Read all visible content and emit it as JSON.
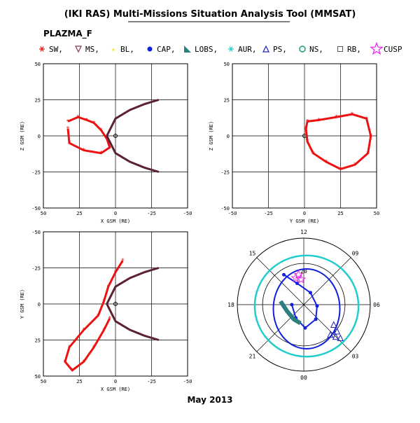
{
  "title": "(IKI RAS) Multi-Missions Situation Analysis Tool (MMSAT)",
  "instrument": "PLAZMA_F",
  "date_label": "May 2013",
  "colors": {
    "orbit": "#ee1111",
    "boundary": "#5a2233",
    "cap": "#1020dd",
    "lobs": "#2a7f7f",
    "aur": "#22cccc",
    "cusp": "#ee22ee",
    "bl": "#eeee22",
    "ps": "#2222bb",
    "ns": "#119966",
    "ms": "#883355",
    "rb": "#555555",
    "polar_outer_ring": "#22cccc",
    "polar_inner_ring": "#1020dd"
  },
  "legend": [
    {
      "label": "SW,",
      "icon": "asterisk-icon",
      "color": "#ee1111"
    },
    {
      "label": "MS,",
      "icon": "down-triangle-icon",
      "color": "#883355"
    },
    {
      "label": "BL,",
      "icon": "star-icon",
      "color": "#eeee22"
    },
    {
      "label": "CAP,",
      "icon": "filled-circle-icon",
      "color": "#1020dd"
    },
    {
      "label": "LOBS,",
      "icon": "filled-triangle-icon",
      "color": "#2a7f7f"
    },
    {
      "label": "AUR,",
      "icon": "asterisk-icon",
      "color": "#22cccc"
    },
    {
      "label": "PS,",
      "icon": "up-triangle-icon",
      "color": "#2222bb"
    },
    {
      "label": "NS,",
      "icon": "open-circle-icon",
      "color": "#119966"
    },
    {
      "label": "RB,",
      "icon": "open-square-icon",
      "color": "#555555"
    },
    {
      "label": "CUSP",
      "icon": "large-star-icon",
      "color": "#ee22ee"
    }
  ],
  "chart_data": [
    {
      "type": "scatter",
      "panel": "top-left",
      "xlabel": "X GSM (RE)",
      "ylabel": "Z GSM (RE)",
      "xlim": [
        50,
        -50
      ],
      "ylim": [
        -50,
        50
      ],
      "x_ticks": [
        50,
        25,
        0,
        -25,
        -50
      ],
      "y_ticks": [
        50,
        25,
        0,
        -25,
        -50
      ],
      "grid": true,
      "series": [
        {
          "role": "orbit",
          "points": [
            [
              33,
              10
            ],
            [
              26,
              13
            ],
            [
              20,
              11
            ],
            [
              15,
              9
            ],
            [
              10,
              4
            ],
            [
              6,
              -2
            ],
            [
              4,
              -8
            ],
            [
              10,
              -12
            ],
            [
              22,
              -10
            ],
            [
              32,
              -5
            ],
            [
              33,
              5
            ]
          ]
        },
        {
          "role": "boundary",
          "points": [
            [
              -30,
              25
            ],
            [
              -20,
              22
            ],
            [
              -10,
              18
            ],
            [
              0,
              12
            ],
            [
              6,
              0
            ],
            [
              0,
              -12
            ],
            [
              -10,
              -18
            ],
            [
              -20,
              -22
            ],
            [
              -30,
              -25
            ]
          ]
        }
      ]
    },
    {
      "type": "scatter",
      "panel": "top-right",
      "xlabel": "Y GSM (RE)",
      "ylabel": "Z GSM (RE)",
      "xlim": [
        -50,
        50
      ],
      "ylim": [
        -50,
        50
      ],
      "x_ticks": [
        -50,
        -25,
        0,
        25,
        50
      ],
      "y_ticks": [
        50,
        25,
        0,
        -25,
        -50
      ],
      "grid": true,
      "series": [
        {
          "role": "orbit",
          "points": [
            [
              2,
              10
            ],
            [
              10,
              11
            ],
            [
              22,
              13
            ],
            [
              33,
              15
            ],
            [
              43,
              12
            ],
            [
              46,
              0
            ],
            [
              44,
              -12
            ],
            [
              35,
              -20
            ],
            [
              25,
              -23
            ],
            [
              15,
              -18
            ],
            [
              6,
              -12
            ],
            [
              2,
              -4
            ],
            [
              1,
              5
            ],
            [
              2,
              10
            ]
          ]
        }
      ]
    },
    {
      "type": "scatter",
      "panel": "bottom-left",
      "xlabel": "X GSM (RE)",
      "ylabel": "Y GSM (RE)",
      "xlim": [
        50,
        -50
      ],
      "ylim": [
        -50,
        50
      ],
      "x_ticks": [
        50,
        25,
        0,
        -25,
        -50
      ],
      "y_ticks": [
        -50,
        -25,
        0,
        25,
        50
      ],
      "grid": true,
      "series": [
        {
          "role": "orbit",
          "points": [
            [
              -5,
              -30
            ],
            [
              0,
              -22
            ],
            [
              5,
              -12
            ],
            [
              8,
              -2
            ],
            [
              12,
              8
            ],
            [
              22,
              18
            ],
            [
              32,
              30
            ],
            [
              35,
              40
            ],
            [
              30,
              46
            ],
            [
              22,
              40
            ],
            [
              15,
              30
            ],
            [
              8,
              18
            ],
            [
              4,
              10
            ]
          ]
        },
        {
          "role": "boundary",
          "points": [
            [
              -30,
              -25
            ],
            [
              -20,
              -22
            ],
            [
              -10,
              -18
            ],
            [
              0,
              -12
            ],
            [
              6,
              0
            ],
            [
              0,
              12
            ],
            [
              -10,
              18
            ],
            [
              -20,
              22
            ],
            [
              -30,
              25
            ]
          ]
        }
      ]
    },
    {
      "type": "scatter",
      "panel": "bottom-right",
      "projection": "polar",
      "mlt_labels": [
        "12",
        "09",
        "06",
        "03",
        "00",
        "21",
        "18",
        "15"
      ],
      "lat_labels": [
        "20"
      ],
      "series": [
        {
          "role": "cap",
          "points": [
            [
              -0.3,
              -0.45
            ],
            [
              -0.1,
              -0.32
            ],
            [
              0.1,
              -0.18
            ],
            [
              0.2,
              0.02
            ],
            [
              0.18,
              0.22
            ],
            [
              0.02,
              0.35
            ],
            [
              -0.12,
              0.2
            ],
            [
              -0.18,
              0.0
            ]
          ]
        },
        {
          "role": "lobs",
          "points": [
            [
              -0.35,
              -0.05
            ],
            [
              -0.25,
              0.1
            ],
            [
              -0.15,
              0.22
            ],
            [
              -0.05,
              0.28
            ]
          ]
        },
        {
          "role": "ps",
          "points": [
            [
              0.45,
              0.3
            ],
            [
              0.5,
              0.4
            ],
            [
              0.55,
              0.5
            ],
            [
              0.48,
              0.48
            ],
            [
              0.4,
              0.45
            ]
          ]
        },
        {
          "role": "cusp",
          "points": [
            [
              -0.08,
              -0.45
            ],
            [
              -0.12,
              -0.4
            ],
            [
              -0.04,
              -0.38
            ]
          ]
        }
      ]
    }
  ]
}
